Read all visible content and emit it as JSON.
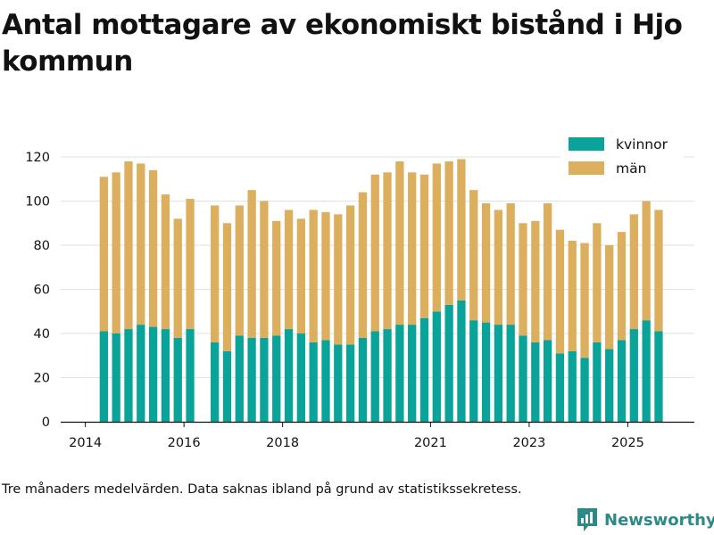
{
  "title": "Antal mottagare av ekonomiskt bistånd i Hjo kommun",
  "note": "Tre månaders medelvärden. Data saknas ibland på grund av statistikssekretess.",
  "brand": {
    "name": "Newsworthy",
    "icon": "newsworthy-logo-icon"
  },
  "colors": {
    "kvinnor": "#0aa39a",
    "man": "#dcaf5e",
    "grid": "#e2e2e2",
    "axis": "#111111"
  },
  "chart_data": {
    "type": "bar",
    "stacked": true,
    "title": "Antal mottagare av ekonomiskt bistånd i Hjo kommun",
    "xlabel": "",
    "ylabel": "",
    "ylim": [
      0,
      120
    ],
    "y_ticks": [
      0,
      20,
      40,
      60,
      80,
      100,
      120
    ],
    "x_ticks": [
      {
        "label": "2014",
        "year": 2014.0
      },
      {
        "label": "2016",
        "year": 2016.0
      },
      {
        "label": "2018",
        "year": 2018.0
      },
      {
        "label": "2021",
        "year": 2021.0
      },
      {
        "label": "2023",
        "year": 2023.0
      },
      {
        "label": "2025",
        "year": 2025.0
      }
    ],
    "legend_position": "top-right",
    "periods": [
      2014.375,
      2014.625,
      2014.875,
      2015.125,
      2015.375,
      2015.625,
      2015.875,
      2016.125,
      2016.625,
      2016.875,
      2017.125,
      2017.375,
      2017.625,
      2017.875,
      2018.125,
      2018.375,
      2018.625,
      2018.875,
      2019.125,
      2019.375,
      2019.625,
      2019.875,
      2020.125,
      2020.375,
      2020.625,
      2020.875,
      2021.125,
      2021.375,
      2021.625,
      2021.875,
      2022.125,
      2022.375,
      2022.625,
      2022.875,
      2023.125,
      2023.375,
      2023.625,
      2023.875,
      2024.125,
      2024.375,
      2024.625,
      2024.875,
      2025.125,
      2025.375,
      2025.625
    ],
    "series": [
      {
        "name": "kvinnor",
        "values": [
          41,
          40,
          42,
          44,
          43,
          42,
          38,
          42,
          36,
          32,
          39,
          38,
          38,
          39,
          42,
          40,
          36,
          37,
          35,
          35,
          38,
          41,
          42,
          44,
          44,
          47,
          50,
          53,
          55,
          46,
          45,
          44,
          44,
          39,
          36,
          37,
          31,
          32,
          29,
          36,
          33,
          37,
          42,
          46,
          41
        ]
      },
      {
        "name": "män",
        "values": [
          70,
          73,
          76,
          73,
          71,
          61,
          54,
          59,
          62,
          58,
          59,
          67,
          62,
          52,
          54,
          52,
          60,
          58,
          59,
          63,
          66,
          71,
          71,
          74,
          69,
          65,
          67,
          65,
          64,
          59,
          54,
          52,
          55,
          51,
          55,
          62,
          56,
          50,
          52,
          54,
          47,
          49,
          52,
          54,
          55
        ]
      }
    ]
  }
}
